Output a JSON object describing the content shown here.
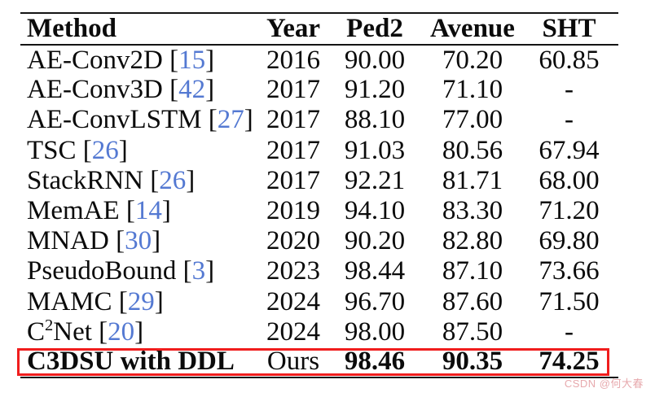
{
  "colors": {
    "citation_blue": "#5479d2",
    "highlight_red": "#f01d1d",
    "rule_black": "#141414",
    "watermark_pink": "#e7a9ad",
    "background": "#ffffff"
  },
  "watermark": {
    "text": "CSDN @何大春"
  },
  "table": {
    "columns": [
      {
        "key": "method",
        "label": "Method"
      },
      {
        "key": "year",
        "label": "Year"
      },
      {
        "key": "ped2",
        "label": "Ped2"
      },
      {
        "key": "avenue",
        "label": "Avenue"
      },
      {
        "key": "sht",
        "label": "SHT"
      }
    ],
    "cite_brackets": {
      "open": "[",
      "close": "]"
    },
    "rows": [
      {
        "method_parts": [
          {
            "t": "AE-Conv2D"
          }
        ],
        "cite": "15",
        "year": "2016",
        "ped2": "90.00",
        "avenue": "70.20",
        "sht": "60.85",
        "emphasis": false,
        "highlighted": false
      },
      {
        "method_parts": [
          {
            "t": "AE-Conv3D"
          }
        ],
        "cite": "42",
        "year": "2017",
        "ped2": "91.20",
        "avenue": "71.10",
        "sht": "-",
        "emphasis": false,
        "highlighted": false
      },
      {
        "method_parts": [
          {
            "t": "AE-ConvLSTM"
          }
        ],
        "cite": "27",
        "year": "2017",
        "ped2": "88.10",
        "avenue": "77.00",
        "sht": "-",
        "emphasis": false,
        "highlighted": false
      },
      {
        "method_parts": [
          {
            "t": "TSC"
          }
        ],
        "cite": "26",
        "year": "2017",
        "ped2": "91.03",
        "avenue": "80.56",
        "sht": "67.94",
        "emphasis": false,
        "highlighted": false
      },
      {
        "method_parts": [
          {
            "t": "StackRNN"
          }
        ],
        "cite": "26",
        "year": "2017",
        "ped2": "92.21",
        "avenue": "81.71",
        "sht": "68.00",
        "emphasis": false,
        "highlighted": false
      },
      {
        "method_parts": [
          {
            "t": "MemAE"
          }
        ],
        "cite": "14",
        "year": "2019",
        "ped2": "94.10",
        "avenue": "83.30",
        "sht": "71.20",
        "emphasis": false,
        "highlighted": false
      },
      {
        "method_parts": [
          {
            "t": "MNAD"
          }
        ],
        "cite": "30",
        "year": "2020",
        "ped2": "90.20",
        "avenue": "82.80",
        "sht": "69.80",
        "emphasis": false,
        "highlighted": false
      },
      {
        "method_parts": [
          {
            "t": "PseudoBound"
          }
        ],
        "cite": "3",
        "year": "2023",
        "ped2": "98.44",
        "avenue": "87.10",
        "sht": "73.66",
        "emphasis": false,
        "highlighted": false
      },
      {
        "method_parts": [
          {
            "t": "MAMC"
          }
        ],
        "cite": "29",
        "year": "2024",
        "ped2": "96.70",
        "avenue": "87.60",
        "sht": "71.50",
        "emphasis": false,
        "highlighted": false
      },
      {
        "method_parts": [
          {
            "t": "C"
          },
          {
            "t": "2",
            "sup": true
          },
          {
            "t": "Net"
          }
        ],
        "cite": "20",
        "year": "2024",
        "ped2": "98.00",
        "avenue": "87.50",
        "sht": "-",
        "emphasis": false,
        "highlighted": false
      },
      {
        "method_parts": [
          {
            "t": "C3DSU with DDL"
          }
        ],
        "cite": null,
        "year": "Ours",
        "ped2": "98.46",
        "avenue": "90.35",
        "sht": "74.25",
        "emphasis": true,
        "highlighted": true
      }
    ]
  }
}
